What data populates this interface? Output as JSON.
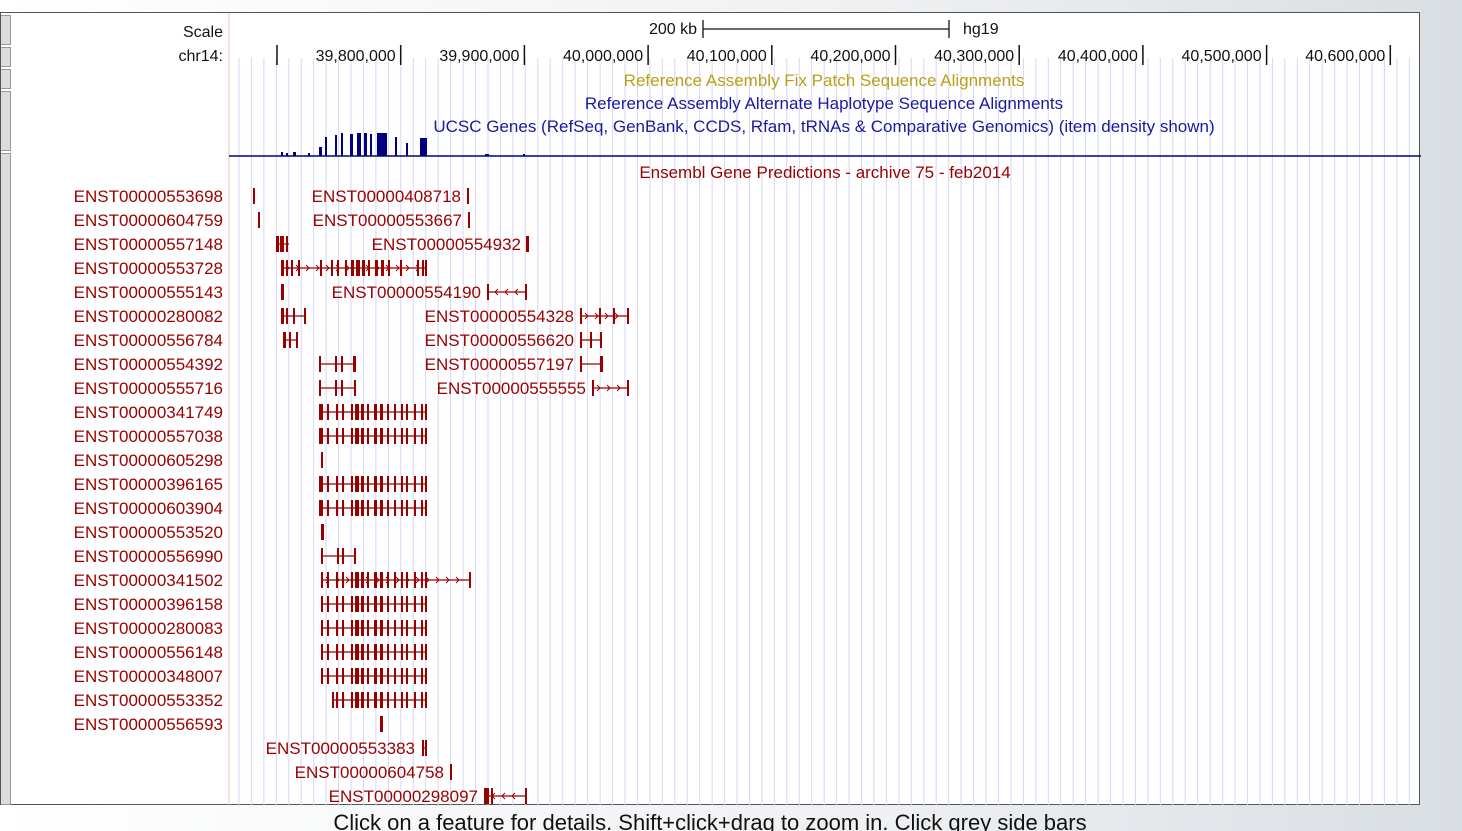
{
  "side_label_header": {
    "scale_label": "Scale",
    "chrom_label": "chr14:"
  },
  "scale_bar": {
    "label": "200 kb",
    "assembly": "hg19"
  },
  "ruler": {
    "positions": [
      39700000,
      39800000,
      39900000,
      40000000,
      40100000,
      40200000,
      40300000,
      40400000,
      40500000,
      40600000
    ],
    "labels": [
      "",
      "39,800,000",
      "39,900,000",
      "40,000,000",
      "40,100,000",
      "40,200,000",
      "40,300,000",
      "40,400,000",
      "40,500,000",
      "40,600,000"
    ]
  },
  "tracks": {
    "fix_patch_title": "Reference Assembly Fix Patch Sequence Alignments",
    "alt_haplotype_title": "Reference Assembly Alternate Haplotype Sequence Alignments",
    "ucsc_genes_title": "UCSC Genes (RefSeq, GenBank, CCDS, Rfam, tRNAs & Comparative Genomics) (item density shown)",
    "ensembl_title": "Ensembl Gene Predictions - archive 75 - feb2014"
  },
  "colors": {
    "ensembl": "#990000",
    "ucsc": "#000080",
    "fix_patch": "#b8a018",
    "alt_haplotype": "#1a1a9a",
    "grid": "#d6d6f5",
    "guide": "#f4c0c0"
  },
  "ensembl_left_labels": [
    "ENST00000553698",
    "ENST00000604759",
    "ENST00000557148",
    "ENST00000553728",
    "ENST00000555143",
    "ENST00000280082",
    "ENST00000556784",
    "ENST00000554392",
    "ENST00000555716",
    "ENST00000341749",
    "ENST00000557038",
    "ENST00000605298",
    "ENST00000396165",
    "ENST00000603904",
    "ENST00000553520",
    "ENST00000556990",
    "ENST00000341502",
    "ENST00000396158",
    "ENST00000280083",
    "ENST00000556148",
    "ENST00000348007",
    "ENST00000553352",
    "ENST00000556593"
  ],
  "ensembl_inline_labels": [
    "ENST00000408718",
    "ENST00000553667",
    "ENST00000554932",
    "ENST00000554190",
    "ENST00000554328",
    "ENST00000556620",
    "ENST00000557197",
    "ENST00000555555",
    "ENST00000553383",
    "ENST00000604758",
    "ENST00000298097"
  ],
  "footer": {
    "hint": "Click on a feature for details. Shift+click+drag to zoom in. Click grey side bars"
  }
}
